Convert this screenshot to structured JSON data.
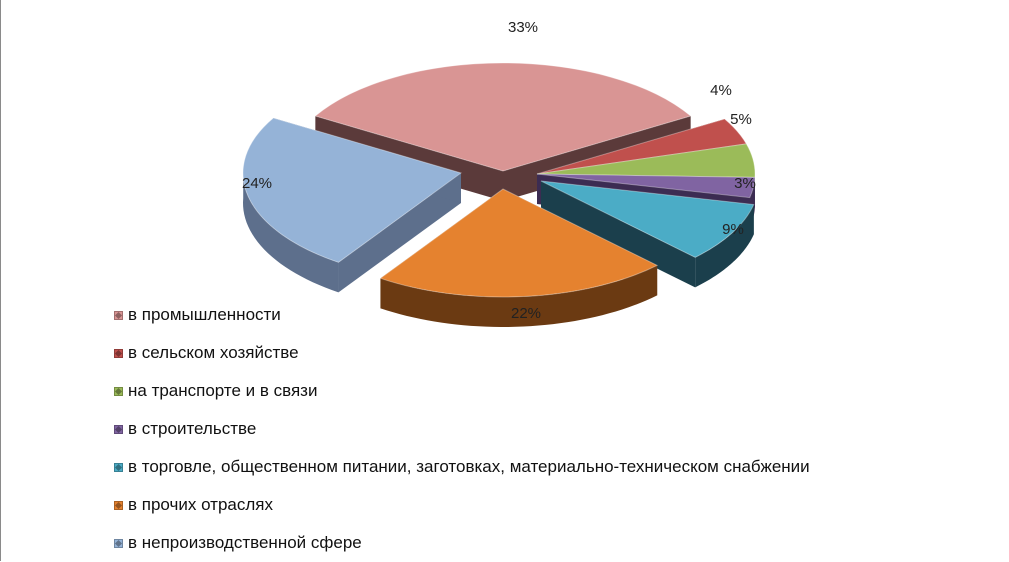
{
  "chart_data": {
    "type": "pie",
    "style": "3d-exploded",
    "title": "",
    "legend_position": "bottom-left",
    "slices": [
      {
        "name": "в промышленности",
        "value": 33,
        "label": "33%",
        "color": "#d99594",
        "side": "#5b3a3a"
      },
      {
        "name": "в сельском хозяйстве",
        "value": 4,
        "label": "4%",
        "color": "#c0504d",
        "side": "#5e2321"
      },
      {
        "name": "на транспорте и в связи",
        "value": 5,
        "label": "5%",
        "color": "#9bbb59",
        "side": "#4a5e25"
      },
      {
        "name": "в строительстве",
        "value": 3,
        "label": "3%",
        "color": "#8064a2",
        "side": "#3c2c52"
      },
      {
        "name": "в торговле, общественном питании, заготовках, материально-техническом снабжении",
        "value": 9,
        "label": "9%",
        "color": "#4bacc6",
        "side": "#1b3f4c"
      },
      {
        "name": "в прочих отраслях",
        "value": 22,
        "label": "22%",
        "color": "#e5822f",
        "side": "#6b3a12"
      },
      {
        "name": "в непроизводственной сфере",
        "value": 24,
        "label": "24%",
        "color": "#95b3d7",
        "side": "#5d6f8c"
      }
    ]
  }
}
